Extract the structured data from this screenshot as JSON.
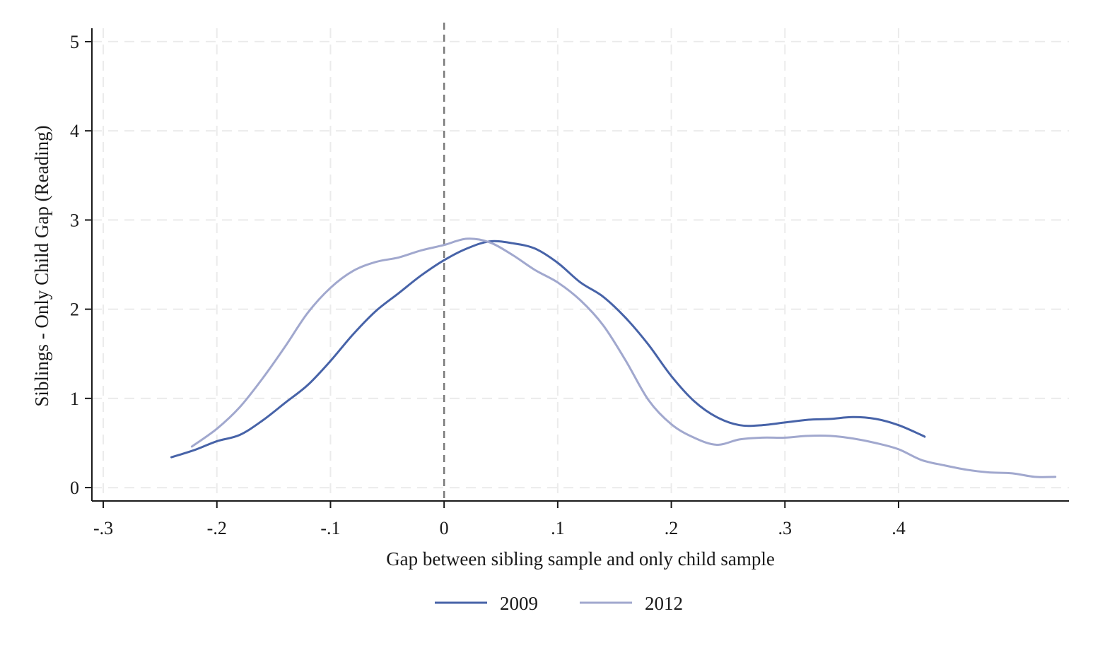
{
  "chart_data": {
    "type": "line",
    "title": "",
    "xlabel": "Gap between sibling sample and only child sample",
    "ylabel": "Siblings - Only Child Gap (Reading)",
    "xlim": [
      -0.31,
      0.55
    ],
    "ylim": [
      -0.15,
      5.15
    ],
    "x_ticks": [
      {
        "value": -0.3,
        "label": "-.3"
      },
      {
        "value": -0.2,
        "label": "-.2"
      },
      {
        "value": -0.1,
        "label": "-.1"
      },
      {
        "value": 0,
        "label": "0"
      },
      {
        "value": 0.1,
        "label": ".1"
      },
      {
        "value": 0.2,
        "label": ".2"
      },
      {
        "value": 0.3,
        "label": ".3"
      },
      {
        "value": 0.4,
        "label": ".4"
      }
    ],
    "y_ticks": [
      {
        "value": 0,
        "label": "0"
      },
      {
        "value": 1,
        "label": "1"
      },
      {
        "value": 2,
        "label": "2"
      },
      {
        "value": 3,
        "label": "3"
      },
      {
        "value": 4,
        "label": "4"
      },
      {
        "value": 5,
        "label": "5"
      }
    ],
    "x_grid": [
      -0.3,
      -0.2,
      -0.1,
      0.1,
      0.2,
      0.3,
      0.4
    ],
    "y_grid": [
      0,
      1,
      2,
      3,
      4,
      5
    ],
    "grid": true,
    "reference_line_x": 0,
    "legend_position": "bottom",
    "series": [
      {
        "name": "2009",
        "color": "#4763a8",
        "points": [
          [
            -0.24,
            0.34
          ],
          [
            -0.22,
            0.42
          ],
          [
            -0.2,
            0.52
          ],
          [
            -0.18,
            0.59
          ],
          [
            -0.16,
            0.75
          ],
          [
            -0.14,
            0.95
          ],
          [
            -0.12,
            1.15
          ],
          [
            -0.1,
            1.42
          ],
          [
            -0.08,
            1.72
          ],
          [
            -0.06,
            1.98
          ],
          [
            -0.04,
            2.18
          ],
          [
            -0.02,
            2.38
          ],
          [
            0.0,
            2.55
          ],
          [
            0.02,
            2.68
          ],
          [
            0.04,
            2.76
          ],
          [
            0.06,
            2.74
          ],
          [
            0.08,
            2.68
          ],
          [
            0.1,
            2.52
          ],
          [
            0.12,
            2.3
          ],
          [
            0.14,
            2.14
          ],
          [
            0.16,
            1.9
          ],
          [
            0.18,
            1.6
          ],
          [
            0.2,
            1.25
          ],
          [
            0.22,
            0.97
          ],
          [
            0.24,
            0.79
          ],
          [
            0.26,
            0.7
          ],
          [
            0.28,
            0.7
          ],
          [
            0.3,
            0.73
          ],
          [
            0.32,
            0.76
          ],
          [
            0.34,
            0.77
          ],
          [
            0.36,
            0.79
          ],
          [
            0.38,
            0.77
          ],
          [
            0.4,
            0.7
          ],
          [
            0.42,
            0.59
          ],
          [
            0.423,
            0.57
          ]
        ]
      },
      {
        "name": "2012",
        "color": "#a1a8ce",
        "points": [
          [
            -0.222,
            0.46
          ],
          [
            -0.2,
            0.66
          ],
          [
            -0.18,
            0.9
          ],
          [
            -0.16,
            1.22
          ],
          [
            -0.14,
            1.58
          ],
          [
            -0.12,
            1.96
          ],
          [
            -0.1,
            2.24
          ],
          [
            -0.08,
            2.43
          ],
          [
            -0.06,
            2.53
          ],
          [
            -0.04,
            2.58
          ],
          [
            -0.02,
            2.66
          ],
          [
            0.0,
            2.72
          ],
          [
            0.02,
            2.79
          ],
          [
            0.04,
            2.75
          ],
          [
            0.06,
            2.61
          ],
          [
            0.08,
            2.44
          ],
          [
            0.1,
            2.3
          ],
          [
            0.12,
            2.1
          ],
          [
            0.14,
            1.82
          ],
          [
            0.16,
            1.42
          ],
          [
            0.18,
            0.98
          ],
          [
            0.2,
            0.71
          ],
          [
            0.22,
            0.56
          ],
          [
            0.24,
            0.48
          ],
          [
            0.26,
            0.54
          ],
          [
            0.28,
            0.56
          ],
          [
            0.3,
            0.56
          ],
          [
            0.32,
            0.58
          ],
          [
            0.34,
            0.58
          ],
          [
            0.36,
            0.55
          ],
          [
            0.38,
            0.5
          ],
          [
            0.4,
            0.43
          ],
          [
            0.42,
            0.31
          ],
          [
            0.44,
            0.25
          ],
          [
            0.46,
            0.2
          ],
          [
            0.48,
            0.17
          ],
          [
            0.5,
            0.16
          ],
          [
            0.52,
            0.12
          ],
          [
            0.538,
            0.12
          ]
        ]
      }
    ]
  }
}
